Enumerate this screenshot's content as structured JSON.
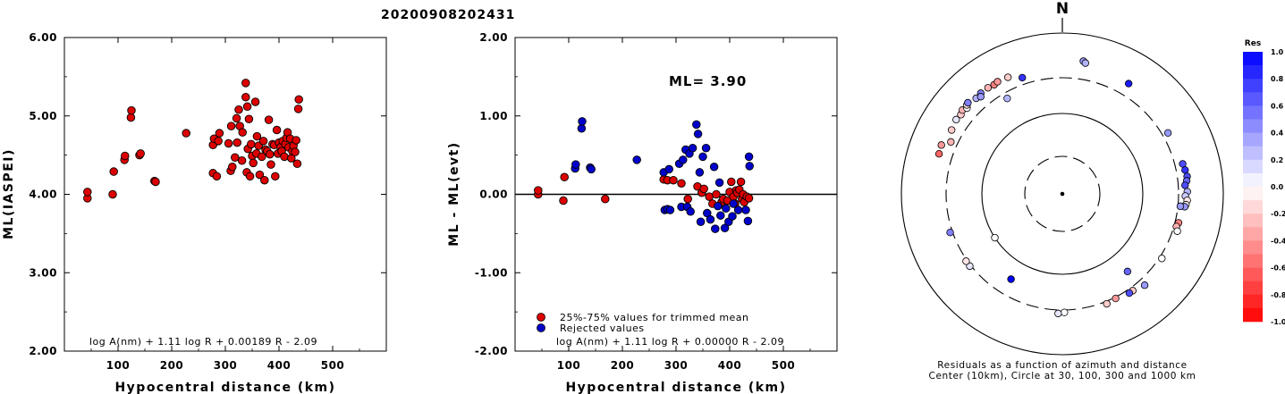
{
  "page_title": "20200908202431",
  "chart_data": [
    {
      "type": "scatter",
      "xlabel": "Hypocentral distance (km)",
      "ylabel": "ML(IASPEI)",
      "xlim": [
        0,
        600
      ],
      "ylim": [
        2.0,
        6.0
      ],
      "xticks": [
        "100",
        "200",
        "300",
        "400",
        "500"
      ],
      "yticks": [
        "2.00",
        "3.00",
        "4.00",
        "5.00",
        "6.00"
      ],
      "annotation": "log A(nm) + 1.11 log R + 0.00189 R - 2.09",
      "marker_color": "#dd0000",
      "points": [
        [
          43,
          3.95
        ],
        [
          43,
          4.03
        ],
        [
          90,
          4.0
        ],
        [
          92,
          4.29
        ],
        [
          112,
          4.44
        ],
        [
          113,
          4.49
        ],
        [
          124,
          4.98
        ],
        [
          125,
          5.07
        ],
        [
          140,
          4.5
        ],
        [
          142,
          4.52
        ],
        [
          168,
          4.17
        ],
        [
          170,
          4.16
        ],
        [
          227,
          4.78
        ],
        [
          277,
          4.27
        ],
        [
          277,
          4.63
        ],
        [
          279,
          4.71
        ],
        [
          284,
          4.23
        ],
        [
          287,
          4.68
        ],
        [
          289,
          4.78
        ],
        [
          306,
          4.65
        ],
        [
          310,
          4.3
        ],
        [
          311,
          4.87
        ],
        [
          313,
          4.35
        ],
        [
          318,
          4.47
        ],
        [
          321,
          4.97
        ],
        [
          322,
          4.66
        ],
        [
          325,
          5.08
        ],
        [
          327,
          4.87
        ],
        [
          331,
          4.43
        ],
        [
          332,
          4.79
        ],
        [
          338,
          5.42
        ],
        [
          338,
          5.24
        ],
        [
          340,
          4.28
        ],
        [
          341,
          5.12
        ],
        [
          342,
          4.58
        ],
        [
          344,
          4.96
        ],
        [
          346,
          4.23
        ],
        [
          348,
          4.64
        ],
        [
          350,
          4.49
        ],
        [
          352,
          4.4
        ],
        [
          356,
          5.18
        ],
        [
          358,
          4.52
        ],
        [
          359,
          4.74
        ],
        [
          362,
          4.62
        ],
        [
          364,
          4.25
        ],
        [
          368,
          4.48
        ],
        [
          371,
          4.68
        ],
        [
          373,
          4.18
        ],
        [
          375,
          4.57
        ],
        [
          378,
          4.55
        ],
        [
          381,
          4.95
        ],
        [
          383,
          4.51
        ],
        [
          385,
          4.38
        ],
        [
          388,
          4.64
        ],
        [
          391,
          4.63
        ],
        [
          393,
          4.23
        ],
        [
          396,
          4.82
        ],
        [
          398,
          4.52
        ],
        [
          400,
          4.66
        ],
        [
          403,
          4.6
        ],
        [
          405,
          4.55
        ],
        [
          407,
          4.68
        ],
        [
          410,
          4.48
        ],
        [
          412,
          4.64
        ],
        [
          414,
          4.72
        ],
        [
          416,
          4.79
        ],
        [
          418,
          4.6
        ],
        [
          421,
          4.71
        ],
        [
          423,
          4.46
        ],
        [
          425,
          4.55
        ],
        [
          427,
          4.62
        ],
        [
          430,
          4.54
        ],
        [
          432,
          4.69
        ],
        [
          434,
          4.39
        ],
        [
          436,
          5.09
        ],
        [
          437,
          5.21
        ]
      ]
    },
    {
      "type": "scatter",
      "xlabel": "Hypocentral distance (km)",
      "ylabel": "ML - ML(evt)",
      "xlim": [
        0,
        600
      ],
      "ylim": [
        -2.0,
        2.0
      ],
      "xticks": [
        "100",
        "200",
        "300",
        "400",
        "500"
      ],
      "yticks": [
        "-2.00",
        "-1.00",
        "0.00",
        "1.00",
        "2.00"
      ],
      "reference_line": 0.0,
      "text": "ML= 3.90",
      "annotation": "log A(nm) + 1.11 log R + 0.00000 R - 2.09",
      "legend": [
        {
          "name": "25%-75% values for trimmed mean",
          "color": "#dd0000"
        },
        {
          "name": "Rejected values",
          "color": "#0000cc"
        }
      ],
      "series": [
        {
          "name": "25%-75% values for trimmed mean",
          "color": "#dd0000",
          "points": [
            [
              43,
              0.0
            ],
            [
              43,
              0.05
            ],
            [
              90,
              -0.08
            ],
            [
              92,
              0.22
            ],
            [
              168,
              -0.06
            ],
            [
              277,
              0.19
            ],
            [
              284,
              0.18
            ],
            [
              295,
              0.18
            ],
            [
              310,
              0.14
            ],
            [
              322,
              -0.06
            ],
            [
              340,
              0.1
            ],
            [
              348,
              0.02
            ],
            [
              352,
              0.07
            ],
            [
              362,
              -0.03
            ],
            [
              368,
              -0.12
            ],
            [
              375,
              0.0
            ],
            [
              385,
              -0.1
            ],
            [
              388,
              -0.06
            ],
            [
              396,
              -0.08
            ],
            [
              400,
              0.03
            ],
            [
              403,
              0.16
            ],
            [
              407,
              -0.03
            ],
            [
              410,
              -0.12
            ],
            [
              412,
              0.05
            ],
            [
              414,
              0.02
            ],
            [
              418,
              0.06
            ],
            [
              421,
              0.16
            ],
            [
              423,
              -0.06
            ],
            [
              425,
              0.0
            ],
            [
              427,
              -0.1
            ],
            [
              432,
              -0.03
            ],
            [
              436,
              -0.05
            ]
          ]
        },
        {
          "name": "Rejected values",
          "color": "#0000cc",
          "points": [
            [
              112,
              0.33
            ],
            [
              113,
              0.38
            ],
            [
              124,
              0.84
            ],
            [
              125,
              0.93
            ],
            [
              140,
              0.34
            ],
            [
              142,
              0.32
            ],
            [
              227,
              0.44
            ],
            [
              277,
              0.28
            ],
            [
              279,
              -0.2
            ],
            [
              284,
              -0.19
            ],
            [
              287,
              0.32
            ],
            [
              289,
              -0.2
            ],
            [
              306,
              0.39
            ],
            [
              310,
              -0.16
            ],
            [
              313,
              0.44
            ],
            [
              318,
              0.57
            ],
            [
              321,
              -0.16
            ],
            [
              325,
              0.52
            ],
            [
              327,
              -0.22
            ],
            [
              331,
              0.59
            ],
            [
              338,
              0.89
            ],
            [
              341,
              0.77
            ],
            [
              344,
              0.28
            ],
            [
              346,
              -0.35
            ],
            [
              350,
              0.48
            ],
            [
              356,
              0.59
            ],
            [
              358,
              -0.24
            ],
            [
              364,
              -0.32
            ],
            [
              371,
              0.35
            ],
            [
              373,
              -0.44
            ],
            [
              378,
              -0.15
            ],
            [
              381,
              0.15
            ],
            [
              383,
              -0.27
            ],
            [
              391,
              -0.43
            ],
            [
              393,
              -0.18
            ],
            [
              398,
              -0.35
            ],
            [
              405,
              -0.28
            ],
            [
              407,
              -0.12
            ],
            [
              416,
              -0.2
            ],
            [
              430,
              -0.2
            ],
            [
              434,
              -0.34
            ],
            [
              436,
              0.48
            ],
            [
              437,
              0.36
            ]
          ]
        }
      ]
    },
    {
      "type": "scatter",
      "subtype": "polar",
      "north_label": "N",
      "caption_line1": "Residuals as a function of azimuth and distance",
      "caption_line2": "Center (10km), Circle at 30, 100, 300 and 1000 km",
      "rings_km": [
        30,
        100,
        300,
        1000
      ],
      "rings_style": [
        "dashed",
        "solid",
        "dashed",
        "solid"
      ],
      "colorbar_title": "Res",
      "colorbar_ticks": [
        "1.0",
        "0.8",
        "0.6",
        "0.4",
        "0.2",
        "0.0",
        "-0.2",
        "-0.4",
        "-0.6",
        "-0.8",
        "-1.0"
      ],
      "stations": [
        {
          "az": 288,
          "dist": 430,
          "res": -0.6
        },
        {
          "az": 292,
          "dist": 440,
          "res": -0.4
        },
        {
          "az": 300,
          "dist": 410,
          "res": -0.2
        },
        {
          "az": 305,
          "dist": 430,
          "res": 0.1
        },
        {
          "az": 308,
          "dist": 420,
          "res": -0.2
        },
        {
          "az": 310,
          "dist": 440,
          "res": -0.3
        },
        {
          "az": 312,
          "dist": 415,
          "res": 0.0
        },
        {
          "az": 313,
          "dist": 440,
          "res": -0.1
        },
        {
          "az": 314,
          "dist": 450,
          "res": 0.5
        },
        {
          "az": 318,
          "dist": 420,
          "res": 0.3
        },
        {
          "az": 321,
          "dist": 430,
          "res": 0.5
        },
        {
          "az": 325,
          "dist": 430,
          "res": -0.3
        },
        {
          "az": 328,
          "dist": 420,
          "res": -0.5
        },
        {
          "az": 330,
          "dist": 430,
          "res": -0.4
        },
        {
          "az": 335,
          "dist": 420,
          "res": -0.2
        },
        {
          "az": 341,
          "dist": 360,
          "res": 0.8
        },
        {
          "az": 320,
          "dist": 400,
          "res": 0.4
        },
        {
          "az": 295,
          "dist": 360,
          "res": -0.3
        },
        {
          "az": 330,
          "dist": 250,
          "res": 0.3
        },
        {
          "az": 9,
          "dist": 490,
          "res": 0.4
        },
        {
          "az": 10,
          "dist": 470,
          "res": 0.3
        },
        {
          "az": 31,
          "dist": 420,
          "res": 0.9
        },
        {
          "az": 60,
          "dist": 350,
          "res": 0.4
        },
        {
          "az": 76,
          "dist": 370,
          "res": 0.7
        },
        {
          "az": 79,
          "dist": 380,
          "res": 0.8
        },
        {
          "az": 82,
          "dist": 390,
          "res": 0.7
        },
        {
          "az": 84,
          "dist": 380,
          "res": 0.6
        },
        {
          "az": 86,
          "dist": 360,
          "res": 0.7
        },
        {
          "az": 89,
          "dist": 380,
          "res": 0.3
        },
        {
          "az": 91,
          "dist": 360,
          "res": 0.2
        },
        {
          "az": 93,
          "dist": 380,
          "res": -0.1
        },
        {
          "az": 95,
          "dist": 370,
          "res": 0.0
        },
        {
          "az": 96,
          "dist": 360,
          "res": 0.4
        },
        {
          "az": 104,
          "dist": 330,
          "res": -0.5
        },
        {
          "az": 106,
          "dist": 320,
          "res": -0.3
        },
        {
          "az": 108,
          "dist": 340,
          "res": 0.0
        },
        {
          "az": 96,
          "dist": 320,
          "res": 0.4
        },
        {
          "az": 123,
          "dist": 320,
          "res": 0.0
        },
        {
          "az": 138,
          "dist": 360,
          "res": 0.4
        },
        {
          "az": 144,
          "dist": 330,
          "res": -0.2
        },
        {
          "az": 146,
          "dist": 330,
          "res": 0.7
        },
        {
          "az": 153,
          "dist": 310,
          "res": -0.4
        },
        {
          "az": 158,
          "dist": 320,
          "res": -0.2
        },
        {
          "az": 179,
          "dist": 320,
          "res": 0.0
        },
        {
          "az": 182,
          "dist": 330,
          "res": 0.1
        },
        {
          "az": 140,
          "dist": 190,
          "res": 0.6
        },
        {
          "az": 211,
          "dist": 180,
          "res": 1.0
        },
        {
          "az": 232,
          "dist": 310,
          "res": 0.1
        },
        {
          "az": 235,
          "dist": 310,
          "res": -0.1
        },
        {
          "az": 251,
          "dist": 320,
          "res": 0.5
        },
        {
          "az": 237,
          "dist": 100,
          "res": 0.0
        }
      ]
    }
  ]
}
